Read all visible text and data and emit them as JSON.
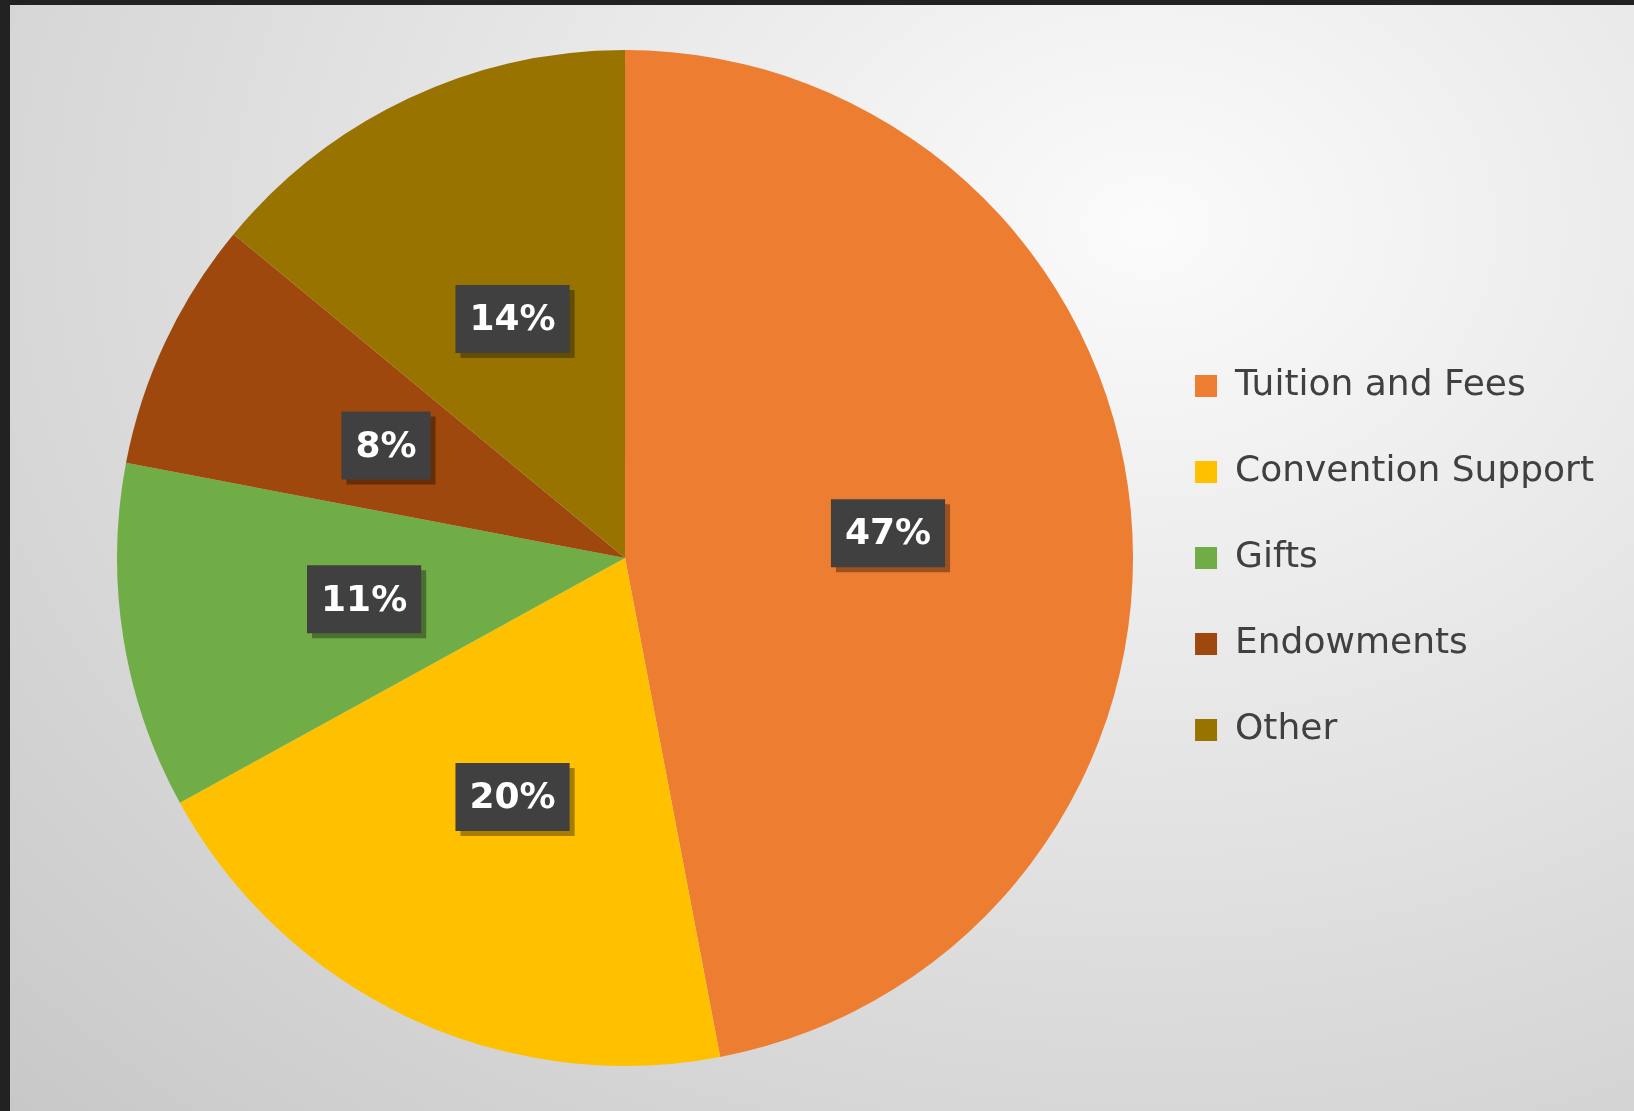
{
  "chart_data": {
    "type": "pie",
    "categories": [
      "Tuition and Fees",
      "Convention Support",
      "Gifts",
      "Endowments",
      "Other"
    ],
    "values": [
      47,
      20,
      11,
      8,
      14
    ],
    "colors": [
      "#ed7d31",
      "#ffc000",
      "#70ad47",
      "#9e480e",
      "#997300"
    ],
    "value_labels": [
      "47%",
      "20%",
      "11%",
      "8%",
      "14%"
    ],
    "legend": "right"
  }
}
